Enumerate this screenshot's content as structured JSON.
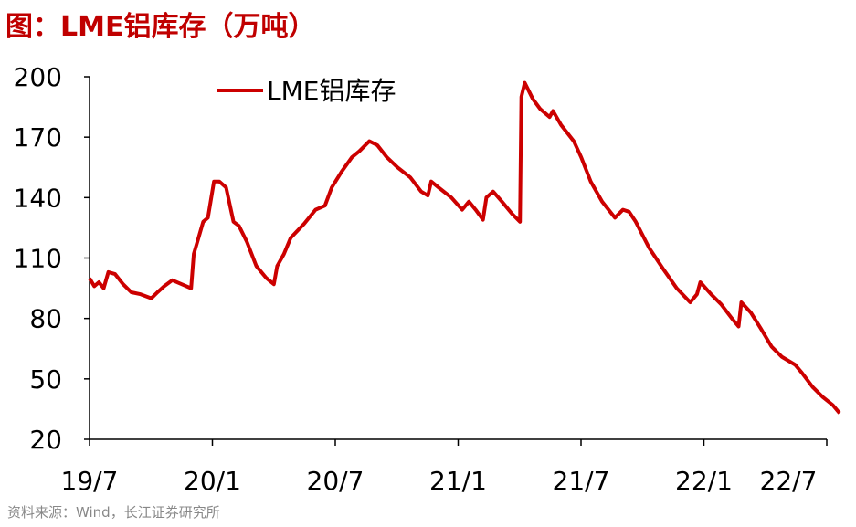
{
  "title": "图：LME铝库存（万吨）",
  "source": "资料来源：Wind，长江证券研究所",
  "chart_data": {
    "type": "line",
    "ylim": [
      20,
      200
    ],
    "y_ticks": [
      20,
      50,
      80,
      110,
      140,
      170,
      200
    ],
    "x_range": [
      "2019-07",
      "2022-07"
    ],
    "x_ticks": [
      "19/7",
      "20/1",
      "20/7",
      "21/1",
      "21/7",
      "22/1",
      "22/7"
    ],
    "legend": "top-left",
    "grid": false,
    "series": [
      {
        "name": "LME铝库存",
        "color": "#cc0000",
        "points": [
          [
            "2019-07-01",
            100
          ],
          [
            "2019-07-08",
            96
          ],
          [
            "2019-07-15",
            98
          ],
          [
            "2019-07-22",
            95
          ],
          [
            "2019-07-29",
            103
          ],
          [
            "2019-08-08",
            102
          ],
          [
            "2019-08-20",
            97
          ],
          [
            "2019-09-01",
            93
          ],
          [
            "2019-09-15",
            92
          ],
          [
            "2019-10-01",
            90
          ],
          [
            "2019-10-10",
            93
          ],
          [
            "2019-10-20",
            96
          ],
          [
            "2019-11-01",
            99
          ],
          [
            "2019-11-15",
            97
          ],
          [
            "2019-11-29",
            95
          ],
          [
            "2019-12-03",
            112
          ],
          [
            "2019-12-10",
            120
          ],
          [
            "2019-12-17",
            128
          ],
          [
            "2019-12-24",
            130
          ],
          [
            "2020-01-02",
            148
          ],
          [
            "2020-01-10",
            148
          ],
          [
            "2020-01-20",
            145
          ],
          [
            "2020-01-31",
            128
          ],
          [
            "2020-02-08",
            126
          ],
          [
            "2020-02-20",
            118
          ],
          [
            "2020-03-05",
            106
          ],
          [
            "2020-03-20",
            100
          ],
          [
            "2020-03-31",
            97
          ],
          [
            "2020-04-05",
            106
          ],
          [
            "2020-04-15",
            112
          ],
          [
            "2020-04-25",
            120
          ],
          [
            "2020-05-15",
            127
          ],
          [
            "2020-06-01",
            134
          ],
          [
            "2020-06-15",
            136
          ],
          [
            "2020-06-25",
            145
          ],
          [
            "2020-07-10",
            153
          ],
          [
            "2020-07-25",
            160
          ],
          [
            "2020-08-05",
            163
          ],
          [
            "2020-08-20",
            168
          ],
          [
            "2020-09-01",
            166
          ],
          [
            "2020-09-15",
            160
          ],
          [
            "2020-10-01",
            155
          ],
          [
            "2020-10-20",
            150
          ],
          [
            "2020-11-05",
            143
          ],
          [
            "2020-11-15",
            141
          ],
          [
            "2020-11-20",
            148
          ],
          [
            "2020-12-01",
            145
          ],
          [
            "2020-12-20",
            140
          ],
          [
            "2021-01-05",
            134
          ],
          [
            "2021-01-15",
            138
          ],
          [
            "2021-01-25",
            134
          ],
          [
            "2021-02-05",
            129
          ],
          [
            "2021-02-10",
            140
          ],
          [
            "2021-02-20",
            143
          ],
          [
            "2021-03-05",
            138
          ],
          [
            "2021-03-20",
            132
          ],
          [
            "2021-04-01",
            128
          ],
          [
            "2021-04-03",
            190
          ],
          [
            "2021-04-08",
            197
          ],
          [
            "2021-04-20",
            189
          ],
          [
            "2021-05-01",
            184
          ],
          [
            "2021-05-15",
            180
          ],
          [
            "2021-05-20",
            183
          ],
          [
            "2021-06-01",
            176
          ],
          [
            "2021-06-20",
            168
          ],
          [
            "2021-07-01",
            160
          ],
          [
            "2021-07-15",
            148
          ],
          [
            "2021-08-01",
            138
          ],
          [
            "2021-08-20",
            130
          ],
          [
            "2021-09-01",
            134
          ],
          [
            "2021-09-10",
            133
          ],
          [
            "2021-09-20",
            128
          ],
          [
            "2021-10-10",
            115
          ],
          [
            "2021-11-01",
            104
          ],
          [
            "2021-11-20",
            95
          ],
          [
            "2021-12-10",
            88
          ],
          [
            "2021-12-20",
            92
          ],
          [
            "2021-12-25",
            98
          ],
          [
            "2022-01-10",
            92
          ],
          [
            "2022-01-25",
            87
          ],
          [
            "2022-02-10",
            80
          ],
          [
            "2022-02-20",
            76
          ],
          [
            "2022-02-24",
            88
          ],
          [
            "2022-03-10",
            83
          ],
          [
            "2022-03-25",
            75
          ],
          [
            "2022-04-10",
            66
          ],
          [
            "2022-04-25",
            61
          ],
          [
            "2022-05-15",
            57
          ],
          [
            "2022-05-25",
            53
          ],
          [
            "2022-06-10",
            46
          ],
          [
            "2022-06-25",
            41
          ],
          [
            "2022-07-10",
            37
          ],
          [
            "2022-07-20",
            33
          ]
        ]
      }
    ]
  }
}
